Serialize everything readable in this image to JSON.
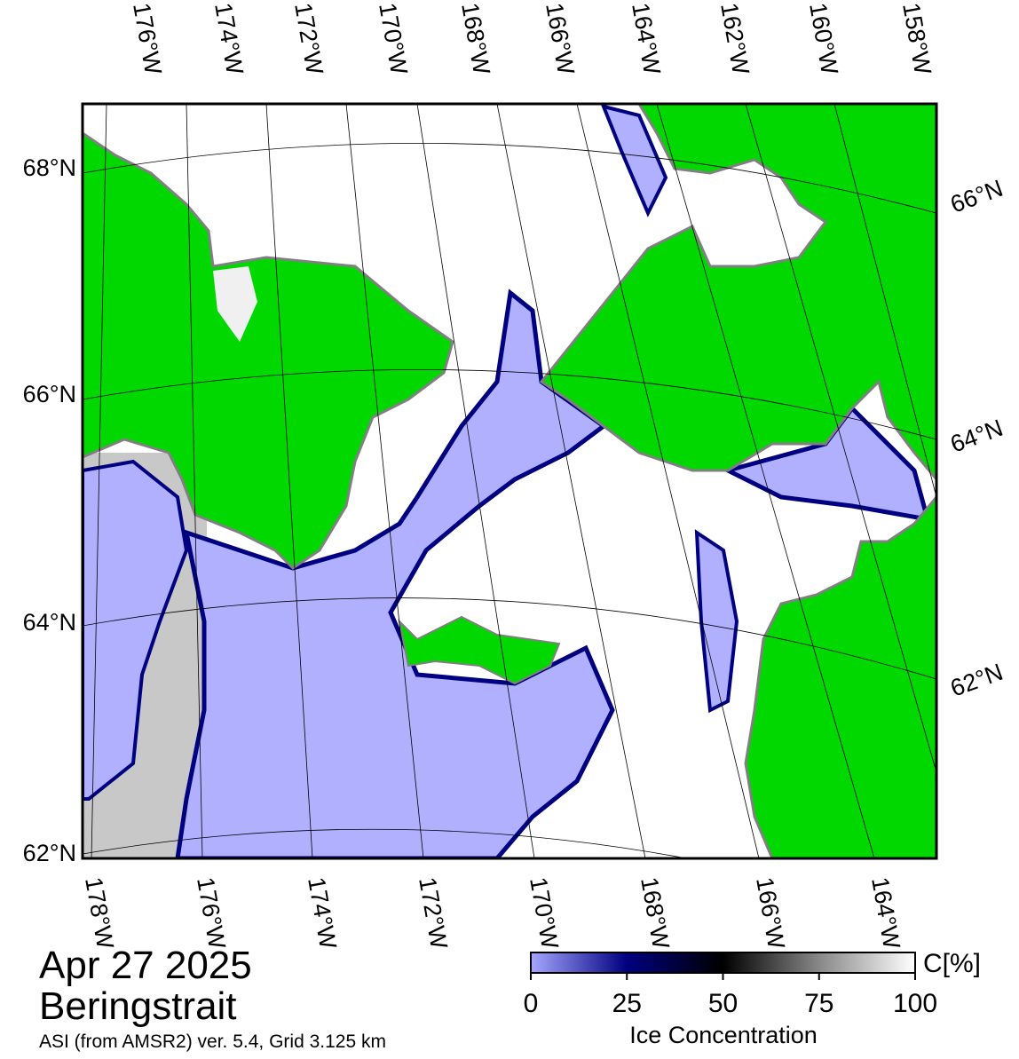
{
  "map": {
    "top_lon_labels": [
      "176°W",
      "174°W",
      "172°W",
      "170°W",
      "168°W",
      "166°W",
      "164°W",
      "162°W",
      "160°W",
      "158°W"
    ],
    "bottom_lon_labels": [
      "178°W",
      "176°W",
      "174°W",
      "172°W",
      "170°W",
      "168°W",
      "166°W",
      "164°W"
    ],
    "left_lat_labels": [
      "68°N",
      "66°N",
      "64°N",
      "62°N"
    ],
    "right_lat_labels": [
      "66°N",
      "64°N",
      "62°N"
    ]
  },
  "caption": {
    "date": "Apr 27 2025",
    "region": "Beringstrait",
    "source": "ASI (from AMSR2) ver. 5.4,  Grid 3.125 km"
  },
  "colorbar": {
    "ticks": [
      0,
      25,
      50,
      75,
      100
    ],
    "unit": "C[%]",
    "label": "Ice Concentration"
  }
}
